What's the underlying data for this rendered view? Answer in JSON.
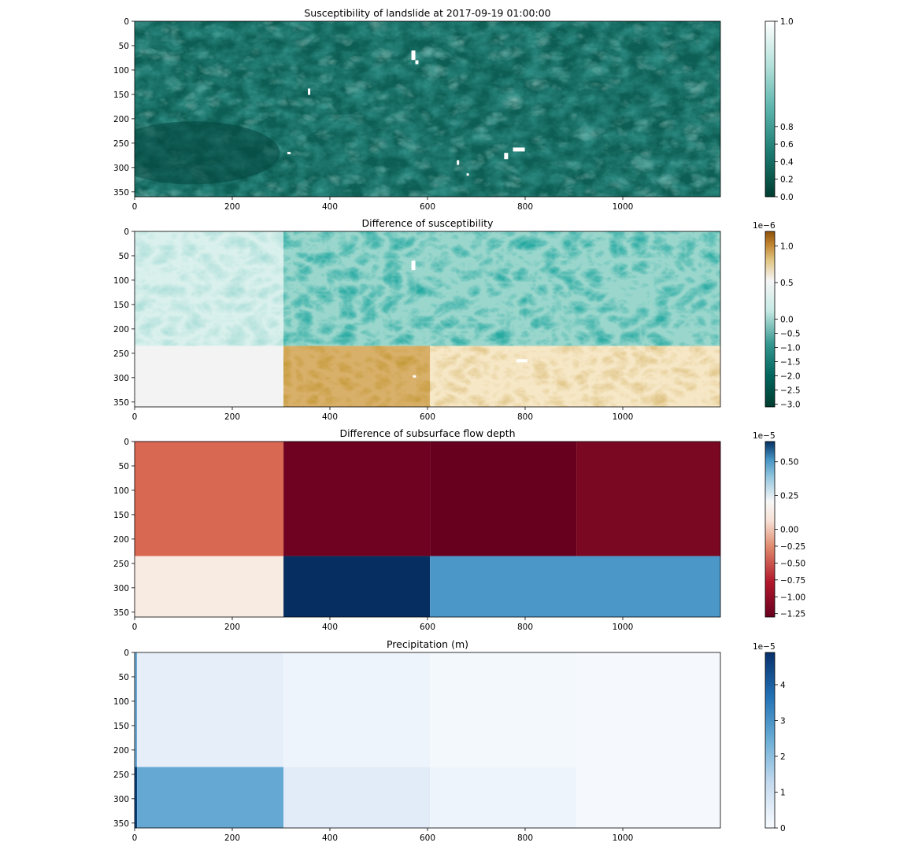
{
  "chart_data": [
    {
      "type": "heatmap",
      "title": "Susceptibility of landslide at 2017-09-19 01:00:00",
      "xlabel": "",
      "ylabel": "",
      "x_ticks": [
        "0",
        "200",
        "400",
        "600",
        "800",
        "1000"
      ],
      "x_tick_values": [
        0,
        200,
        400,
        600,
        800,
        1000
      ],
      "y_ticks": [
        "0",
        "50",
        "100",
        "150",
        "200",
        "250",
        "300",
        "350"
      ],
      "y_tick_values": [
        0,
        50,
        100,
        150,
        200,
        250,
        300,
        350
      ],
      "xlim": [
        0,
        1200
      ],
      "ylim": [
        360,
        0
      ],
      "colormap": "BrBG-teal (white to dark teal)",
      "colorbar": {
        "min": 0.0,
        "max": 1.0,
        "offset_label": "",
        "tick_labels": [
          "0.0",
          "0.2",
          "0.4",
          "0.6",
          "0.8",
          "1.0"
        ],
        "tick_values": [
          0.0,
          0.2,
          0.4,
          0.6,
          0.8,
          1.0
        ]
      },
      "description_values": "terrain texture of moderate susceptibility (approx. 0.1–0.6) with small white (~1.0) patches near x≈360,570,660,780"
    },
    {
      "type": "heatmap",
      "title": "Difference of susceptibility",
      "xlabel": "",
      "ylabel": "",
      "x_ticks": [
        "0",
        "200",
        "400",
        "600",
        "800",
        "1000"
      ],
      "x_tick_values": [
        0,
        200,
        400,
        600,
        800,
        1000
      ],
      "y_ticks": [
        "0",
        "50",
        "100",
        "150",
        "200",
        "250",
        "300",
        "350"
      ],
      "y_tick_values": [
        0,
        50,
        100,
        150,
        200,
        250,
        300,
        350
      ],
      "xlim": [
        0,
        1200
      ],
      "ylim": [
        360,
        0
      ],
      "colormap": "BrBG (teal negative, white zero, brown positive)",
      "colorbar": {
        "min": -3.1,
        "max": 1.2,
        "offset_label": "1e−6",
        "tick_labels": [
          "−3.0",
          "−2.5",
          "−2.0",
          "−1.5",
          "−1.0",
          "−0.5",
          "0.0",
          "0.5",
          "1.0"
        ],
        "tick_values": [
          -3.0,
          -2.5,
          -2.0,
          -1.5,
          -1.0,
          -0.5,
          0.0,
          0.5,
          1.0
        ]
      },
      "blocks": [
        {
          "x": [
            0,
            305
          ],
          "y": [
            0,
            235
          ],
          "value": -0.6
        },
        {
          "x": [
            305,
            1200
          ],
          "y": [
            0,
            235
          ],
          "value": -1.6
        },
        {
          "x": [
            0,
            305
          ],
          "y": [
            235,
            360
          ],
          "value": -0.05
        },
        {
          "x": [
            305,
            605
          ],
          "y": [
            235,
            360
          ],
          "value": 0.8
        },
        {
          "x": [
            605,
            1200
          ],
          "y": [
            235,
            360
          ],
          "value": 0.35
        }
      ]
    },
    {
      "type": "heatmap",
      "title": "Difference of subsurface flow depth",
      "xlabel": "",
      "ylabel": "",
      "x_ticks": [
        "0",
        "200",
        "400",
        "600",
        "800",
        "1000"
      ],
      "x_tick_values": [
        0,
        200,
        400,
        600,
        800,
        1000
      ],
      "y_ticks": [
        "0",
        "50",
        "100",
        "150",
        "200",
        "250",
        "300",
        "350"
      ],
      "y_tick_values": [
        0,
        50,
        100,
        150,
        200,
        250,
        300,
        350
      ],
      "xlim": [
        0,
        1200
      ],
      "ylim": [
        360,
        0
      ],
      "colormap": "RdBu (red negative, white zero, blue positive)",
      "colorbar": {
        "min": -1.3,
        "max": 0.65,
        "offset_label": "1e−5",
        "tick_labels": [
          "−1.25",
          "−1.00",
          "−0.75",
          "−0.50",
          "−0.25",
          "0.00",
          "0.25",
          "0.50"
        ],
        "tick_values": [
          -1.25,
          -1.0,
          -0.75,
          -0.5,
          -0.25,
          0.0,
          0.25,
          0.5
        ]
      },
      "blocks": [
        {
          "x": [
            0,
            305
          ],
          "y": [
            0,
            235
          ],
          "value": -0.75,
          "color": "#d96853"
        },
        {
          "x": [
            305,
            605
          ],
          "y": [
            0,
            235
          ],
          "value": -1.28,
          "color": "#6e0220"
        },
        {
          "x": [
            605,
            905
          ],
          "y": [
            0,
            235
          ],
          "value": -1.3,
          "color": "#67001f"
        },
        {
          "x": [
            905,
            1200
          ],
          "y": [
            0,
            235
          ],
          "value": -1.22,
          "color": "#7b0823"
        },
        {
          "x": [
            0,
            305
          ],
          "y": [
            235,
            360
          ],
          "value": -0.05,
          "color": "#f8ebe2"
        },
        {
          "x": [
            305,
            605
          ],
          "y": [
            235,
            360
          ],
          "value": 0.65,
          "color": "#062e60"
        },
        {
          "x": [
            605,
            1200
          ],
          "y": [
            235,
            360
          ],
          "value": 0.33,
          "color": "#4b97c7"
        }
      ]
    },
    {
      "type": "heatmap",
      "title": "Precipitation (m)",
      "xlabel": "",
      "ylabel": "",
      "x_ticks": [
        "0",
        "200",
        "400",
        "600",
        "800",
        "1000"
      ],
      "x_tick_values": [
        0,
        200,
        400,
        600,
        800,
        1000
      ],
      "y_ticks": [
        "0",
        "50",
        "100",
        "150",
        "200",
        "250",
        "300",
        "350"
      ],
      "y_tick_values": [
        0,
        50,
        100,
        150,
        200,
        250,
        300,
        350
      ],
      "xlim": [
        0,
        1200
      ],
      "ylim": [
        360,
        0
      ],
      "colormap": "Blues",
      "colorbar": {
        "min": 0,
        "max": 4.9,
        "offset_label": "1e−5",
        "tick_labels": [
          "0",
          "1",
          "2",
          "3",
          "4"
        ],
        "tick_values": [
          0,
          1,
          2,
          3,
          4
        ]
      },
      "blocks": [
        {
          "x": [
            0,
            5
          ],
          "y": [
            0,
            235
          ],
          "value": 2.4,
          "color": "#6aa9d3"
        },
        {
          "x": [
            5,
            305
          ],
          "y": [
            0,
            235
          ],
          "value": 0.7,
          "color": "#e6eff9"
        },
        {
          "x": [
            305,
            605
          ],
          "y": [
            0,
            235
          ],
          "value": 0.4,
          "color": "#eef4fb"
        },
        {
          "x": [
            605,
            905
          ],
          "y": [
            0,
            235
          ],
          "value": 0.2,
          "color": "#f3f8fd"
        },
        {
          "x": [
            905,
            1200
          ],
          "y": [
            0,
            235
          ],
          "value": 0.15,
          "color": "#f5f9fe"
        },
        {
          "x": [
            0,
            5
          ],
          "y": [
            235,
            360
          ],
          "value": 4.9,
          "color": "#0b3f79"
        },
        {
          "x": [
            5,
            305
          ],
          "y": [
            235,
            360
          ],
          "value": 2.4,
          "color": "#64a8d3"
        },
        {
          "x": [
            305,
            605
          ],
          "y": [
            235,
            360
          ],
          "value": 0.75,
          "color": "#e1ecf8"
        },
        {
          "x": [
            605,
            905
          ],
          "y": [
            235,
            360
          ],
          "value": 0.35,
          "color": "#edf4fb"
        },
        {
          "x": [
            905,
            1200
          ],
          "y": [
            235,
            360
          ],
          "value": 0.15,
          "color": "#f5f9fe"
        }
      ]
    }
  ]
}
